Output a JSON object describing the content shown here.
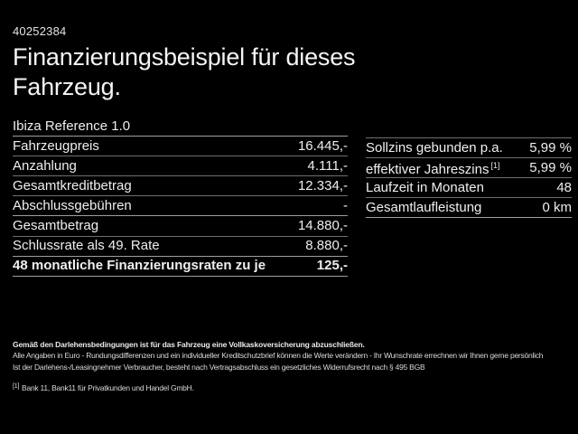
{
  "page": {
    "id_number": "40252384",
    "title": "Finanzierungsbeispiel für dieses Fahrzeug.",
    "vehicle_name": "Ibiza Reference 1.0"
  },
  "left_table": {
    "rows": [
      {
        "label": "Fahrzeugpreis",
        "value": "16.445,-"
      },
      {
        "label": "Anzahlung",
        "value": "4.111,-"
      },
      {
        "label": "Gesamtkreditbetrag",
        "value": "12.334,-"
      },
      {
        "label": "Abschlussgebühren",
        "value": "-"
      },
      {
        "label": "Gesamtbetrag",
        "value": "14.880,-"
      },
      {
        "label": "Schlussrate als 49. Rate",
        "value": "8.880,-"
      },
      {
        "label": "48 monatliche Finanzierungsraten zu je",
        "value": "125,-"
      }
    ]
  },
  "right_table": {
    "rows": [
      {
        "label": "Sollzins gebunden p.a.",
        "value": "5,99 %"
      },
      {
        "label": "effektiver Jahreszins",
        "marker": "[1]",
        "value": "5,99 %"
      },
      {
        "label": "Laufzeit in Monaten",
        "value": "48"
      },
      {
        "label": "Gesamtlaufleistung",
        "value": "0 km"
      }
    ]
  },
  "footnotes": {
    "insurance_note": "Gemäß den Darlehensbedingungen ist für das Fahrzeug eine Vollkaskoversicherung abzuschließen.",
    "disclaimer_line1": "Alle Angaben in Euro - Rundungsdifferenzen und ein individueller Kreditschutzbrief können die Werte verändern - Ihr Wunschrate errechnen wir Ihnen gerne persönlich",
    "disclaimer_line2": "Ist der Darlehens-/Leasingnehmer Verbraucher, besteht nach Vertragsabschluss ein gesetzliches Widerrufsrecht nach § 495 BGB",
    "bank_ref_marker": "[1]",
    "bank_ref": "Bank 11, Bank11 für Privatkunden und Handel GmbH."
  },
  "colors": {
    "background": "#000000",
    "text_primary": "#f2f2f2",
    "text_secondary": "#d9d9d9",
    "divider": "#6f6f6f",
    "divider_strong": "#9e9e9e"
  }
}
